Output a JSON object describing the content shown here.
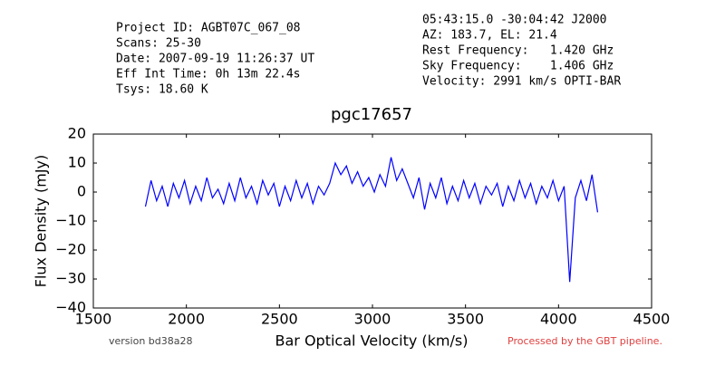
{
  "chart_data": {
    "type": "line",
    "title": "pgc17657",
    "header_left": [
      "Project ID: AGBT07C_067_08",
      "Scans: 25-30",
      "Date: 2007-09-19 11:26:37 UT",
      "Eff Int Time: 0h 13m 22.4s",
      "Tsys: 18.60 K"
    ],
    "header_right": [
      "05:43:15.0 -30:04:42 J2000",
      "AZ: 183.7, EL: 21.4",
      "Rest Frequency:   1.420 GHz",
      "Sky Frequency:    1.406 GHz",
      "Velocity: 2991 km/s OPTI-BAR"
    ],
    "footer_left": "version bd38a28",
    "footer_right": "Processed by the GBT pipeline.",
    "x_label": "Bar Optical Velocity (km/s)",
    "y_label": "Flux Density (mJy)",
    "x": [
      1780,
      1810,
      1840,
      1870,
      1900,
      1930,
      1960,
      1990,
      2020,
      2050,
      2080,
      2110,
      2140,
      2170,
      2200,
      2230,
      2260,
      2290,
      2320,
      2350,
      2380,
      2410,
      2440,
      2470,
      2500,
      2530,
      2560,
      2590,
      2620,
      2650,
      2680,
      2710,
      2740,
      2770,
      2800,
      2830,
      2860,
      2890,
      2920,
      2950,
      2980,
      3010,
      3040,
      3070,
      3100,
      3130,
      3160,
      3190,
      3220,
      3250,
      3280,
      3310,
      3340,
      3370,
      3400,
      3430,
      3460,
      3490,
      3520,
      3550,
      3580,
      3610,
      3640,
      3670,
      3700,
      3730,
      3760,
      3790,
      3820,
      3850,
      3880,
      3910,
      3940,
      3970,
      4000,
      4030,
      4060,
      4090,
      4120,
      4150,
      4180,
      4210
    ],
    "series": [
      {
        "color": "#0000ff",
        "values": [
          -5,
          4,
          -3,
          2,
          -5,
          3,
          -2,
          4,
          -4,
          2,
          -3,
          5,
          -2,
          1,
          -4,
          3,
          -3,
          5,
          -2,
          2,
          -4,
          4,
          -1,
          3,
          -5,
          2,
          -3,
          4,
          -2,
          3,
          -4,
          2,
          -1,
          3,
          10,
          6,
          9,
          3,
          7,
          2,
          5,
          0,
          6,
          2,
          12,
          4,
          8,
          3,
          -2,
          5,
          -6,
          3,
          -2,
          5,
          -4,
          2,
          -3,
          4,
          -2,
          3,
          -4,
          2,
          -1,
          3,
          -5,
          2,
          -3,
          4,
          -2,
          3,
          -4,
          2,
          -2,
          4,
          -3,
          2,
          -31,
          -2,
          4,
          -3,
          6,
          -7
        ]
      }
    ],
    "xlim": [
      1500,
      4500
    ],
    "xticks": [
      1500,
      2000,
      2500,
      3000,
      3500,
      4000,
      4500
    ],
    "ylim": [
      -40,
      20
    ],
    "yticks": [
      {
        "value": -40,
        "label": "−40"
      },
      {
        "value": -30,
        "label": "−30"
      },
      {
        "value": -20,
        "label": "−20"
      },
      {
        "value": -10,
        "label": "−10"
      },
      0,
      10,
      20
    ]
  }
}
